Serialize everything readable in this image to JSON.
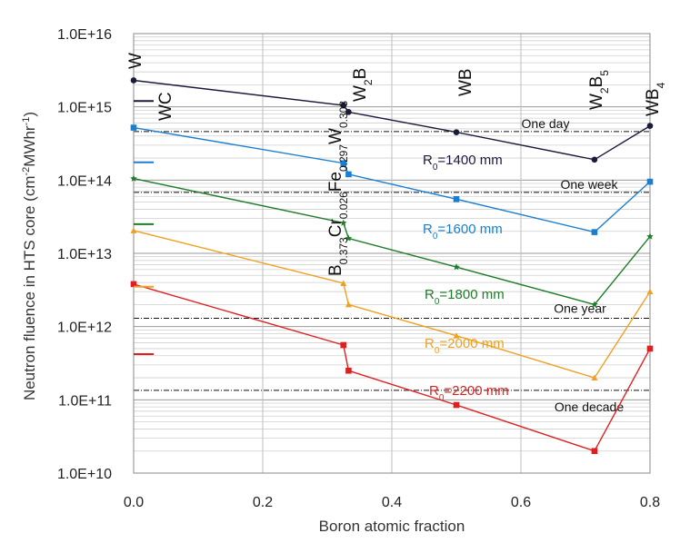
{
  "chart_data": {
    "type": "line",
    "xlabel": "Boron atomic fraction",
    "ylabel": "Neutron fluence in HTS core (cm",
    "ylabel_sup": "-2",
    "ylabel_mid": "MWhr",
    "ylabel_sup2": "-1",
    "ylabel_end": ")",
    "xlim": [
      0,
      0.8
    ],
    "ylim": [
      10000000000.0,
      1e+16
    ],
    "yscale": "log",
    "x_ticks": [
      "0.0",
      "0.2",
      "0.4",
      "0.6",
      "0.8"
    ],
    "y_ticks": [
      "1.0E+10",
      "1.0E+11",
      "1.0E+12",
      "1.0E+13",
      "1.0E+14",
      "1.0E+15",
      "1.0E+16"
    ],
    "grid": true,
    "series": [
      {
        "name": "R0=1400 mm",
        "label_main": "R",
        "label_sub": "0",
        "label_rest": "=1400 mm",
        "color": "#1a1a3a",
        "marker": "circle",
        "x": [
          0,
          0.325,
          0.333,
          0.5,
          0.714,
          0.8
        ],
        "y": [
          2300000000000000.0,
          1050000000000000.0,
          850000000000000.0,
          450000000000000.0,
          190000000000000.0,
          550000000000000.0
        ],
        "wc_value": 1200000000000000.0
      },
      {
        "name": "R0=1600 mm",
        "label_main": "R",
        "label_sub": "0",
        "label_rest": "=1600 mm",
        "color": "#1b7fd1",
        "marker": "square",
        "x": [
          0,
          0.325,
          0.333,
          0.5,
          0.714,
          0.8
        ],
        "y": [
          520000000000000.0,
          170000000000000.0,
          120000000000000.0,
          55000000000000.0,
          19500000000000.0,
          95000000000000.0
        ],
        "wc_value": 175000000000000.0
      },
      {
        "name": "R0=1800 mm",
        "label_main": "R",
        "label_sub": "0",
        "label_rest": "=1800 mm",
        "color": "#1e7d2a",
        "marker": "star",
        "x": [
          0,
          0.325,
          0.333,
          0.5,
          0.714,
          0.8
        ],
        "y": [
          105000000000000.0,
          26000000000000.0,
          16000000000000.0,
          6500000000000.0,
          2000000000000.0,
          17000000000000.0
        ],
        "wc_value": 25000000000000.0
      },
      {
        "name": "R0=2000 mm",
        "label_main": "R",
        "label_sub": "0",
        "label_rest": "=2000 mm",
        "color": "#f0a020",
        "marker": "triangle",
        "x": [
          0,
          0.325,
          0.333,
          0.5,
          0.714,
          0.8
        ],
        "y": [
          20500000000000.0,
          3900000000000.0,
          2000000000000.0,
          750000000000.0,
          200000000000.0,
          3000000000000.0
        ],
        "wc_value": 3500000000000.0
      },
      {
        "name": "R0=2200 mm",
        "label_main": "R",
        "label_sub": "0",
        "label_rest": "=2200 mm",
        "color": "#e02020",
        "marker": "square",
        "x": [
          0,
          0.325,
          0.333,
          0.5,
          0.714,
          0.8
        ],
        "y": [
          3800000000000.0,
          560000000000.0,
          250000000000.0,
          85000000000.0,
          20000000000.0,
          500000000000.0
        ],
        "wc_value": 420000000000.0
      }
    ],
    "reference_lines": [
      {
        "label": "One day",
        "y": 460000000000000.0
      },
      {
        "label": "One week",
        "y": 68000000000000.0
      },
      {
        "label": "One year",
        "y": 1300000000000.0
      },
      {
        "label": "One decade",
        "y": 135000000000.0
      }
    ],
    "materials": {
      "w": "W",
      "wc": "WC",
      "fe_alloy": [
        {
          "t": "B",
          "s": "0.373"
        },
        {
          "t": "Cr",
          "s": "0.026"
        },
        {
          "t": "Fe",
          "s": "0.297"
        },
        {
          "t": "W",
          "s": "0.303"
        }
      ],
      "w2b": [
        {
          "t": "W",
          "s": "2"
        },
        {
          "t": "B",
          "s": ""
        }
      ],
      "wb": "WB",
      "w2b5": [
        {
          "t": "W",
          "s": "2"
        },
        {
          "t": "B",
          "s": "5"
        }
      ],
      "wb4": [
        {
          "t": "WB",
          "s": "4"
        }
      ]
    }
  }
}
